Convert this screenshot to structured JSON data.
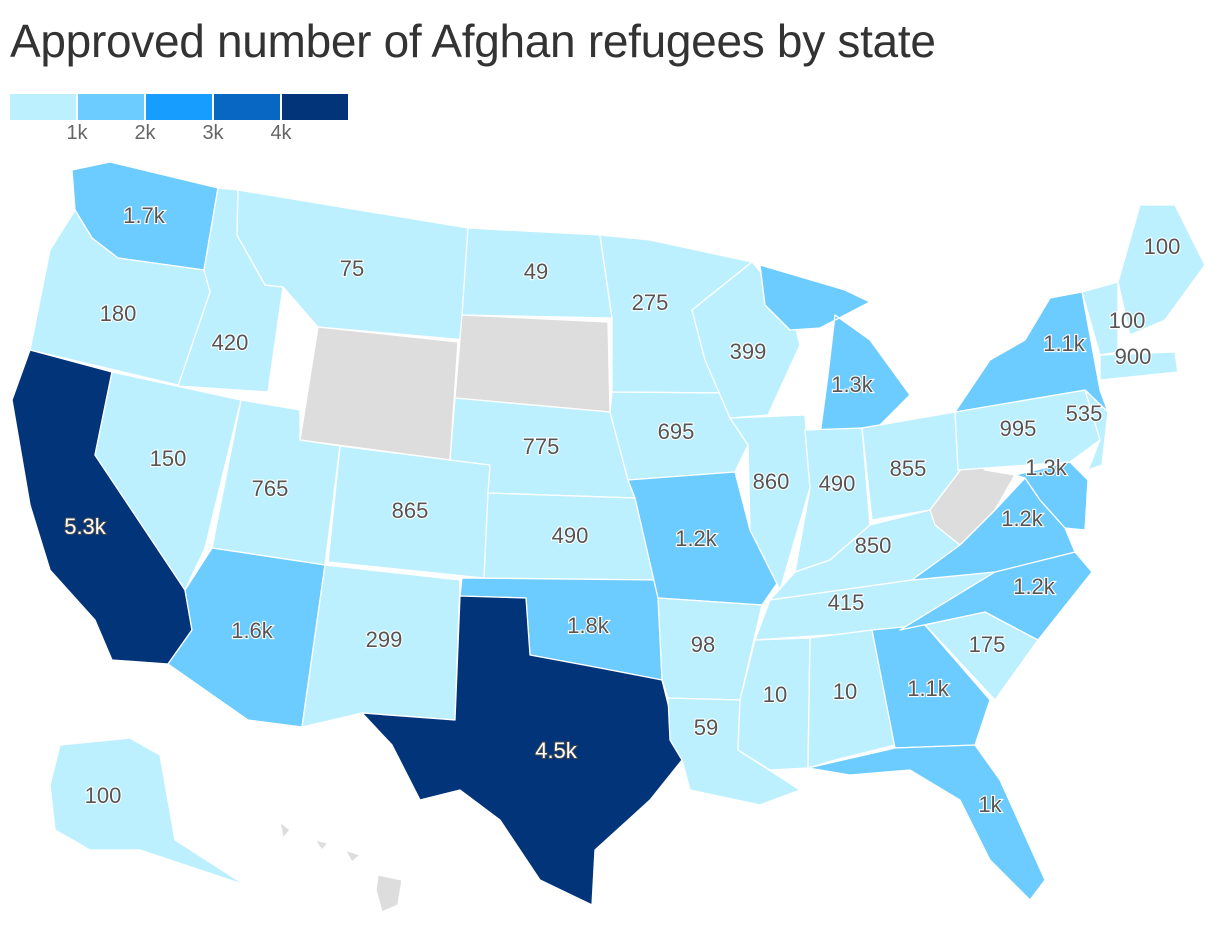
{
  "title": "Approved number of Afghan refugees by state",
  "legend": {
    "colors": [
      "#bdf0ff",
      "#6ccbff",
      "#169dfe",
      "#0867c3",
      "#023479"
    ],
    "ticks": [
      "1k",
      "2k",
      "3k",
      "4k"
    ]
  },
  "colors": {
    "no_data": "#dddddd",
    "text_dark": "#555555",
    "text_light": "#ffffff"
  },
  "map_data": {
    "states": [
      {
        "code": "WA",
        "label": "1.7k",
        "value": 1700
      },
      {
        "code": "OR",
        "label": "180",
        "value": 180
      },
      {
        "code": "CA",
        "label": "5.3k",
        "value": 5300
      },
      {
        "code": "ID",
        "label": "420",
        "value": 420
      },
      {
        "code": "NV",
        "label": "150",
        "value": 150
      },
      {
        "code": "MT",
        "label": "75",
        "value": 75
      },
      {
        "code": "WY",
        "label": "",
        "value": null
      },
      {
        "code": "UT",
        "label": "765",
        "value": 765
      },
      {
        "code": "AZ",
        "label": "1.6k",
        "value": 1600
      },
      {
        "code": "CO",
        "label": "865",
        "value": 865
      },
      {
        "code": "NM",
        "label": "299",
        "value": 299
      },
      {
        "code": "ND",
        "label": "49",
        "value": 49
      },
      {
        "code": "SD",
        "label": "",
        "value": null
      },
      {
        "code": "NE",
        "label": "775",
        "value": 775
      },
      {
        "code": "KS",
        "label": "490",
        "value": 490
      },
      {
        "code": "OK",
        "label": "1.8k",
        "value": 1800
      },
      {
        "code": "TX",
        "label": "4.5k",
        "value": 4500
      },
      {
        "code": "MN",
        "label": "275",
        "value": 275
      },
      {
        "code": "IA",
        "label": "695",
        "value": 695
      },
      {
        "code": "MO",
        "label": "1.2k",
        "value": 1200
      },
      {
        "code": "AR",
        "label": "98",
        "value": 98
      },
      {
        "code": "LA",
        "label": "59",
        "value": 59
      },
      {
        "code": "WI",
        "label": "399",
        "value": 399
      },
      {
        "code": "IL",
        "label": "860",
        "value": 860
      },
      {
        "code": "MI",
        "label": "1.3k",
        "value": 1300
      },
      {
        "code": "IN",
        "label": "490",
        "value": 490
      },
      {
        "code": "OH",
        "label": "855",
        "value": 855
      },
      {
        "code": "KY",
        "label": "850",
        "value": 850
      },
      {
        "code": "TN",
        "label": "415",
        "value": 415
      },
      {
        "code": "MS",
        "label": "10",
        "value": 10
      },
      {
        "code": "AL",
        "label": "10",
        "value": 10
      },
      {
        "code": "GA",
        "label": "1.1k",
        "value": 1100
      },
      {
        "code": "FL",
        "label": "1k",
        "value": 1000
      },
      {
        "code": "SC",
        "label": "175",
        "value": 175
      },
      {
        "code": "NC",
        "label": "1.2k",
        "value": 1200
      },
      {
        "code": "VA",
        "label": "1.2k",
        "value": 1200
      },
      {
        "code": "WV",
        "label": "",
        "value": null
      },
      {
        "code": "PA",
        "label": "995",
        "value": 995
      },
      {
        "code": "NY",
        "label": "1.1k",
        "value": 1100
      },
      {
        "code": "MD",
        "label": "1.3k",
        "value": 1300
      },
      {
        "code": "NJ",
        "label": "535",
        "value": 535
      },
      {
        "code": "VT",
        "label": "100",
        "value": 100
      },
      {
        "code": "MA",
        "label": "900",
        "value": 900
      },
      {
        "code": "ME",
        "label": "100",
        "value": 100
      },
      {
        "code": "AK",
        "label": "100",
        "value": 100
      },
      {
        "code": "HI",
        "label": "",
        "value": null
      }
    ]
  }
}
